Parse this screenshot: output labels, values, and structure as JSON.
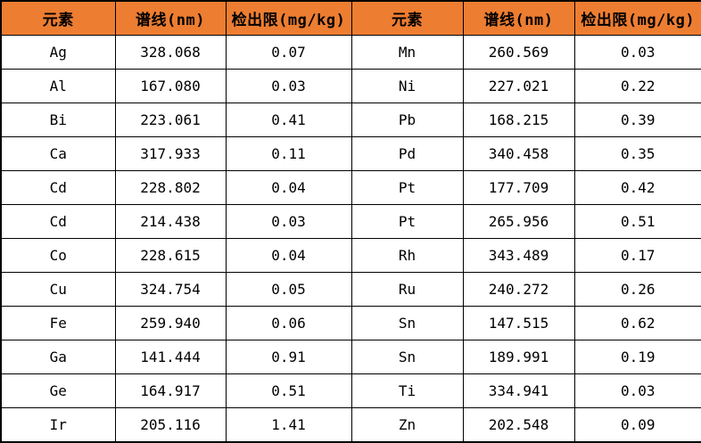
{
  "table": {
    "headers": [
      "元素",
      "谱线(nm)",
      "检出限(mg/kg)",
      "元素",
      "谱线(nm)",
      "检出限(mg/kg)"
    ],
    "rows": [
      [
        "Ag",
        "328.068",
        "0.07",
        "Mn",
        "260.569",
        "0.03"
      ],
      [
        "Al",
        "167.080",
        "0.03",
        "Ni",
        "227.021",
        "0.22"
      ],
      [
        "Bi",
        "223.061",
        "0.41",
        "Pb",
        "168.215",
        "0.39"
      ],
      [
        "Ca",
        "317.933",
        "0.11",
        "Pd",
        "340.458",
        "0.35"
      ],
      [
        "Cd",
        "228.802",
        "0.04",
        "Pt",
        "177.709",
        "0.42"
      ],
      [
        "Cd",
        "214.438",
        "0.03",
        "Pt",
        "265.956",
        "0.51"
      ],
      [
        "Co",
        "228.615",
        "0.04",
        "Rh",
        "343.489",
        "0.17"
      ],
      [
        "Cu",
        "324.754",
        "0.05",
        "Ru",
        "240.272",
        "0.26"
      ],
      [
        "Fe",
        "259.940",
        "0.06",
        "Sn",
        "147.515",
        "0.62"
      ],
      [
        "Ga",
        "141.444",
        "0.91",
        "Sn",
        "189.991",
        "0.19"
      ],
      [
        "Ge",
        "164.917",
        "0.51",
        "Ti",
        "334.941",
        "0.03"
      ],
      [
        "Ir",
        "205.116",
        "1.41",
        "Zn",
        "202.548",
        "0.09"
      ]
    ]
  },
  "colors": {
    "header_bg": "#ED7D31",
    "header_text": "#000000",
    "cell_text": "#000000",
    "border": "#000000",
    "row_bg": "#FFFFFF"
  }
}
